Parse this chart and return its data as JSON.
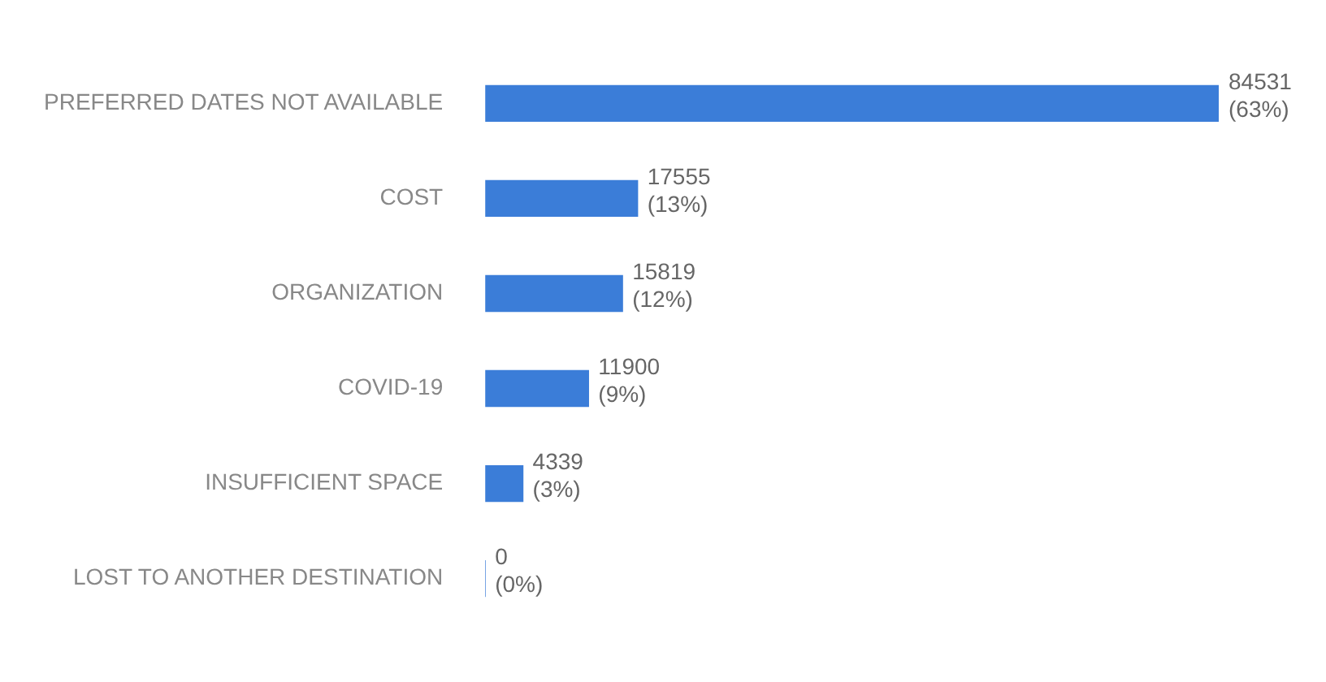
{
  "chart_data": {
    "type": "bar",
    "orientation": "horizontal",
    "categories": [
      "PREFERRED DATES NOT AVAILABLE",
      "COST",
      "ORGANIZATION",
      "COVID-19",
      "INSUFFICIENT SPACE",
      "LOST TO ANOTHER DESTINATION"
    ],
    "values": [
      84531,
      17555,
      15819,
      11900,
      4339,
      0
    ],
    "value_labels": [
      "84531 (63%)",
      "17555 (13%)",
      "15819 (12%)",
      "11900 (9%)",
      "4339 (3%)",
      "0 (0%)"
    ],
    "color": "#3b7dd8",
    "grid": false,
    "legend": false,
    "tick_labels": "y"
  }
}
